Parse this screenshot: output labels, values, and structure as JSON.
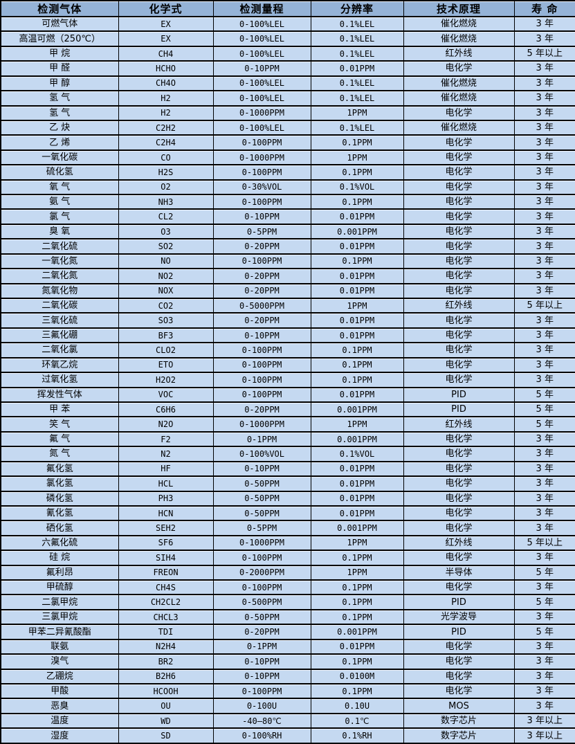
{
  "colors": {
    "header_bg": "#95b3d7",
    "row_bg": "#c5d9f1",
    "border": "#000000"
  },
  "table": {
    "headers": [
      "检测气体",
      "化学式",
      "检测量程",
      "分辨率",
      "技术原理",
      "寿 命"
    ],
    "rows": [
      [
        "可燃气体",
        "EX",
        "0-100%LEL",
        "0.1%LEL",
        "催化燃烧",
        "3 年"
      ],
      [
        "高温可燃（250℃）",
        "EX",
        "0-100%LEL",
        "0.1%LEL",
        "催化燃烧",
        "3 年"
      ],
      [
        "甲 烷",
        "CH4",
        "0-100%LEL",
        "0.1%LEL",
        "红外线",
        "5 年以上"
      ],
      [
        "甲 醛",
        "HCHO",
        "0-10PPM",
        "0.01PPM",
        "电化学",
        "3 年"
      ],
      [
        "甲 醇",
        "CH4O",
        "0-100%LEL",
        "0.1%LEL",
        "催化燃烧",
        "3 年"
      ],
      [
        "氢 气",
        "H2",
        "0-100%LEL",
        "0.1%LEL",
        "催化燃烧",
        "3 年"
      ],
      [
        "氢 气",
        "H2",
        "0-1000PPM",
        "1PPM",
        "电化学",
        "3 年"
      ],
      [
        "乙 炔",
        "C2H2",
        "0-100%LEL",
        "0.1%LEL",
        "催化燃烧",
        "3 年"
      ],
      [
        "乙 烯",
        "C2H4",
        "0-100PPM",
        "0.1PPM",
        "电化学",
        "3 年"
      ],
      [
        "一氧化碳",
        "CO",
        "0-1000PPM",
        "1PPM",
        "电化学",
        "3 年"
      ],
      [
        "硫化氢",
        "H2S",
        "0-100PPM",
        "0.1PPM",
        "电化学",
        "3 年"
      ],
      [
        "氧 气",
        "O2",
        "0-30%VOL",
        "0.1%VOL",
        "电化学",
        "3 年"
      ],
      [
        "氨 气",
        "NH3",
        "0-100PPM",
        "0.1PPM",
        "电化学",
        "3 年"
      ],
      [
        "氯 气",
        "CL2",
        "0-10PPM",
        "0.01PPM",
        "电化学",
        "3 年"
      ],
      [
        "臭 氧",
        "O3",
        "0-5PPM",
        "0.001PPM",
        "电化学",
        "3 年"
      ],
      [
        "二氧化硫",
        "SO2",
        "0-20PPM",
        "0.01PPM",
        "电化学",
        "3 年"
      ],
      [
        "一氧化氮",
        "NO",
        "0-100PPM",
        "0.1PPM",
        "电化学",
        "3 年"
      ],
      [
        "二氧化氮",
        "NO2",
        "0-20PPM",
        "0.01PPM",
        "电化学",
        "3 年"
      ],
      [
        "氮氧化物",
        "NOX",
        "0-20PPM",
        "0.01PPM",
        "电化学",
        "3 年"
      ],
      [
        "二氧化碳",
        "CO2",
        "0-5000PPM",
        "1PPM",
        "红外线",
        "5 年以上"
      ],
      [
        "三氧化硫",
        "SO3",
        "0-20PPM",
        "0.01PPM",
        "电化学",
        "3 年"
      ],
      [
        "三氟化硼",
        "BF3",
        "0-10PPM",
        "0.01PPM",
        "电化学",
        "3 年"
      ],
      [
        "二氧化氯",
        "CLO2",
        "0-100PPM",
        "0.1PPM",
        "电化学",
        "3 年"
      ],
      [
        "环氧乙烷",
        "ETO",
        "0-100PPM",
        "0.1PPM",
        "电化学",
        "3 年"
      ],
      [
        "过氧化氢",
        "H2O2",
        "0-100PPM",
        "0.1PPM",
        "电化学",
        "3 年"
      ],
      [
        "挥发性气体",
        "VOC",
        "0-100PPM",
        "0.01PPM",
        "PID",
        "5 年"
      ],
      [
        "甲 苯",
        "C6H6",
        "0-20PPM",
        "0.001PPM",
        "PID",
        "5 年"
      ],
      [
        "笑 气",
        "N2O",
        "0-1000PPM",
        "1PPM",
        "红外线",
        "5 年"
      ],
      [
        "氟 气",
        "F2",
        "0-1PPM",
        "0.001PPM",
        "电化学",
        "3 年"
      ],
      [
        "氮 气",
        "N2",
        "0-100%VOL",
        "0.1%VOL",
        "电化学",
        "3 年"
      ],
      [
        "氟化氢",
        "HF",
        "0-10PPM",
        "0.01PPM",
        "电化学",
        "3 年"
      ],
      [
        "氯化氢",
        "HCL",
        "0-50PPM",
        "0.01PPM",
        "电化学",
        "3 年"
      ],
      [
        "磷化氢",
        "PH3",
        "0-50PPM",
        "0.01PPM",
        "电化学",
        "3 年"
      ],
      [
        "氰化氢",
        "HCN",
        "0-50PPM",
        "0.01PPM",
        "电化学",
        "3 年"
      ],
      [
        "硒化氢",
        "SEH2",
        "0-5PPM",
        "0.001PPM",
        "电化学",
        "3 年"
      ],
      [
        "六氟化硫",
        "SF6",
        "0-1000PPM",
        "1PPM",
        "红外线",
        "5 年以上"
      ],
      [
        "硅 烷",
        "SIH4",
        "0-100PPM",
        "0.1PPM",
        "电化学",
        "3 年"
      ],
      [
        "氟利昂",
        "FREON",
        "0-2000PPM",
        "1PPM",
        "半导体",
        "5 年"
      ],
      [
        "甲硫醇",
        "CH4S",
        "0-100PPM",
        "0.1PPM",
        "电化学",
        "3 年"
      ],
      [
        "二氯甲烷",
        "CH2CL2",
        "0-500PPM",
        "0.1PPM",
        "PID",
        "5 年"
      ],
      [
        "三氯甲烷",
        "CHCL3",
        "0-50PPM",
        "0.1PPM",
        "光学波导",
        "3 年"
      ],
      [
        "甲苯二异氰酸酯",
        "TDI",
        "0-20PPM",
        "0.001PPM",
        "PID",
        "5 年"
      ],
      [
        "联氨",
        "N2H4",
        "0-1PPM",
        "0.01PPM",
        "电化学",
        "3 年"
      ],
      [
        "溴气",
        "BR2",
        "0-10PPM",
        "0.1PPM",
        "电化学",
        "3 年"
      ],
      [
        "乙硼烷",
        "B2H6",
        "0-10PPM",
        "0.0100M",
        "电化学",
        "3 年"
      ],
      [
        "甲酸",
        "HCOOH",
        "0-100PPM",
        "0.1PPM",
        "电化学",
        "3 年"
      ],
      [
        "恶臭",
        "OU",
        "0-100U",
        "0.10U",
        "MOS",
        "3 年"
      ],
      [
        "温度",
        "WD",
        "-40—80℃",
        "0.1℃",
        "数字芯片",
        "3 年以上"
      ],
      [
        "湿度",
        "SD",
        "0-100%RH",
        "0.1%RH",
        "数字芯片",
        "3 年以上"
      ]
    ]
  }
}
